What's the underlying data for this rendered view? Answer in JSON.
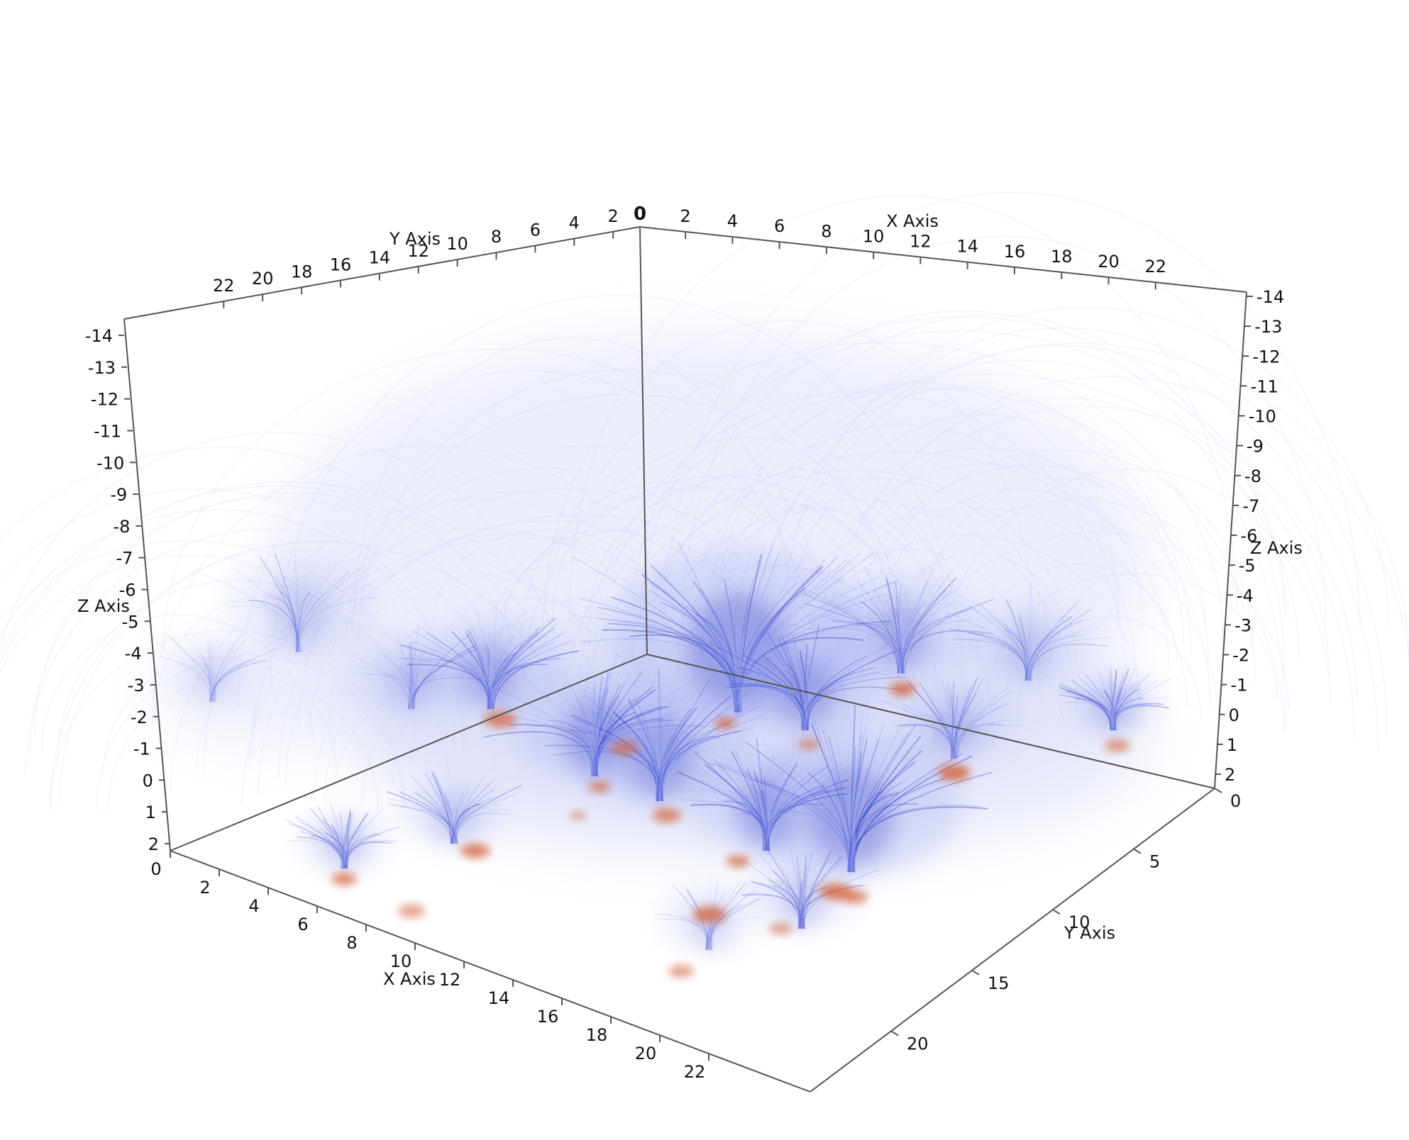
{
  "scene": {
    "colors": {
      "background": "#ffffff",
      "axis_line": "#555555",
      "field_dark": "#3a46c8",
      "field_light": "#9aa6f2",
      "field_faint": "#c9cff4",
      "footpoint": "#d4653a"
    },
    "render_style": "magnetic field line volume rendering, blue strands rising from orange footpoints"
  },
  "axes": {
    "origin_label": "0",
    "x_top": {
      "title": "X Axis",
      "ticks": [
        "2",
        "4",
        "6",
        "8",
        "10",
        "12",
        "14",
        "16",
        "18",
        "20",
        "22"
      ]
    },
    "y_top": {
      "title": "Y Axis",
      "ticks": [
        "2",
        "4",
        "6",
        "8",
        "10",
        "12",
        "14",
        "16",
        "18",
        "20",
        "22"
      ]
    },
    "z_left": {
      "title": "Z Axis",
      "ticks": [
        "-14",
        "-13",
        "-12",
        "-11",
        "-10",
        "-9",
        "-8",
        "-7",
        "-6",
        "-5",
        "-4",
        "-3",
        "-2",
        "-1",
        "0",
        "1",
        "2"
      ]
    },
    "z_right": {
      "title": "Z Axis",
      "ticks": [
        "-14",
        "-13",
        "-12",
        "-11",
        "-10",
        "-9",
        "-8",
        "-7",
        "-6",
        "-5",
        "-4",
        "-3",
        "-2",
        "-1",
        "0",
        "1",
        "2"
      ]
    },
    "x_bottom": {
      "title": "X Axis",
      "ticks": [
        "0",
        "2",
        "4",
        "6",
        "8",
        "10",
        "12",
        "14",
        "16",
        "18",
        "20",
        "22"
      ]
    },
    "y_bottom": {
      "title": "Y Axis",
      "ticks": [
        "0",
        "5",
        "10",
        "15",
        "20"
      ]
    }
  }
}
